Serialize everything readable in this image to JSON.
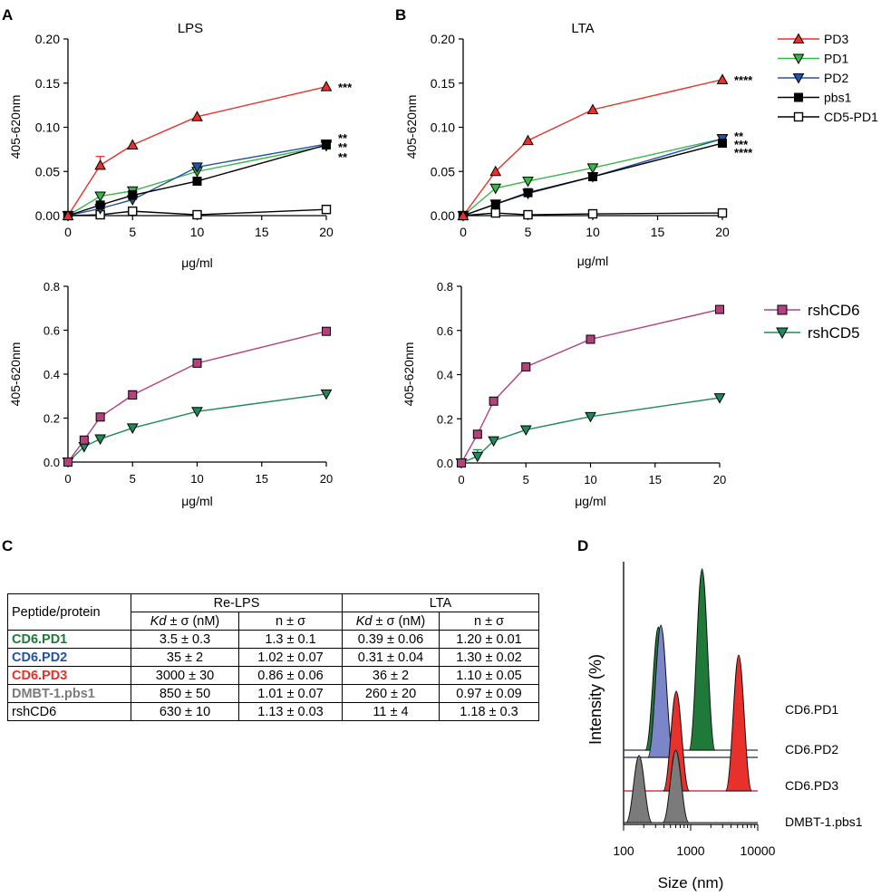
{
  "panels": {
    "A": "A",
    "B": "B",
    "C": "C",
    "D": "D"
  },
  "colors": {
    "PD3": "#e8312b",
    "PD1": "#3ab54a",
    "PD2": "#2453a6",
    "pbs1": "#000000",
    "CD5-PD1": "#000000",
    "rshCD6": "#b2417e",
    "rshCD5": "#1e8a5a",
    "CD6.PD1": "#1f7a3a",
    "CD6.PD2": "#2453a6",
    "CD6.PD3": "#e8312b",
    "DMBT-1.pbs1": "#7b7b7b",
    "rshCD6_text": "#000000",
    "dls_PD1": "#1f7a3a",
    "dls_PD2": "#7b86c8",
    "dls_PD3": "#e8312b",
    "dls_pbs1": "#7b7b7b"
  },
  "chart_data": [
    {
      "id": "A-top",
      "type": "line",
      "title": "LPS",
      "xlabel": "μg/ml",
      "ylabel": "405-620nm",
      "xlim": [
        0,
        20
      ],
      "ylim": [
        0,
        0.2
      ],
      "xticks": [
        "0",
        "5",
        "10",
        "15",
        "20"
      ],
      "yticks": [
        "0.00",
        "0.05",
        "0.10",
        "0.15",
        "0.20"
      ],
      "series": [
        {
          "name": "PD3",
          "marker": "tri-up",
          "x": [
            0,
            2.5,
            5,
            10,
            20
          ],
          "y": [
            0,
            0.057,
            0.08,
            0.112,
            0.146
          ],
          "err": [
            0,
            0.01,
            0,
            0,
            0
          ]
        },
        {
          "name": "PD1",
          "marker": "tri-down",
          "x": [
            0,
            2.5,
            5,
            10,
            20
          ],
          "y": [
            0,
            0.022,
            0.028,
            0.05,
            0.079
          ],
          "err": [
            0,
            0,
            0,
            0,
            0
          ]
        },
        {
          "name": "PD2",
          "marker": "tri-down",
          "x": [
            0,
            2.5,
            5,
            10,
            20
          ],
          "y": [
            0,
            0.008,
            0.018,
            0.055,
            0.081
          ],
          "err": [
            0,
            0,
            0,
            0,
            0
          ]
        },
        {
          "name": "pbs1",
          "marker": "square",
          "x": [
            0,
            2.5,
            5,
            10,
            20
          ],
          "y": [
            0,
            0.012,
            0.023,
            0.039,
            0.08
          ],
          "err": [
            0,
            0,
            0.005,
            0,
            0
          ]
        },
        {
          "name": "CD5-PD1",
          "marker": "square-open",
          "x": [
            0,
            2.5,
            5,
            10,
            20
          ],
          "y": [
            0,
            0.001,
            0.005,
            0.001,
            0.007
          ],
          "err": [
            0,
            0,
            0,
            0,
            0
          ]
        }
      ],
      "annotations": [
        "***",
        "**",
        "**",
        "**"
      ]
    },
    {
      "id": "B-top",
      "type": "line",
      "title": "LTA",
      "xlabel": "μg/ml",
      "ylabel": "405-620nm",
      "xlim": [
        0,
        20
      ],
      "ylim": [
        0,
        0.2
      ],
      "xticks": [
        "0",
        "5",
        "10",
        "15",
        "20"
      ],
      "yticks": [
        "0.00",
        "0.05",
        "0.10",
        "0.15",
        "0.20"
      ],
      "series": [
        {
          "name": "PD3",
          "marker": "tri-up",
          "x": [
            0,
            2.5,
            5,
            10,
            20
          ],
          "y": [
            0,
            0.05,
            0.085,
            0.12,
            0.154
          ],
          "err": [
            0,
            0,
            0,
            0,
            0
          ]
        },
        {
          "name": "PD1",
          "marker": "tri-down",
          "x": [
            0,
            2.5,
            5,
            10,
            20
          ],
          "y": [
            0,
            0.031,
            0.039,
            0.054,
            0.087
          ],
          "err": [
            0,
            0,
            0,
            0,
            0
          ]
        },
        {
          "name": "PD2",
          "marker": "tri-down",
          "x": [
            0,
            2.5,
            5,
            10,
            20
          ],
          "y": [
            0,
            0.013,
            0.025,
            0.044,
            0.087
          ],
          "err": [
            0,
            0,
            0,
            0,
            0
          ]
        },
        {
          "name": "pbs1",
          "marker": "square",
          "x": [
            0,
            2.5,
            5,
            10,
            20
          ],
          "y": [
            0,
            0.013,
            0.026,
            0.044,
            0.082
          ],
          "err": [
            0,
            0,
            0,
            0,
            0
          ]
        },
        {
          "name": "CD5-PD1",
          "marker": "square-open",
          "x": [
            0,
            2.5,
            5,
            10,
            20
          ],
          "y": [
            0,
            0.003,
            0.001,
            0.002,
            0.003
          ],
          "err": [
            0,
            0,
            0,
            0,
            0
          ]
        }
      ],
      "annotations": [
        "****",
        "**",
        "***",
        "****"
      ]
    },
    {
      "id": "A-bottom",
      "type": "line",
      "title": "",
      "xlabel": "μg/ml",
      "ylabel": "405-620nm",
      "xlim": [
        0,
        20
      ],
      "ylim": [
        0,
        0.8
      ],
      "xticks": [
        "0",
        "5",
        "10",
        "15",
        "20"
      ],
      "yticks": [
        "0.0",
        "0.2",
        "0.4",
        "0.6",
        "0.8"
      ],
      "series": [
        {
          "name": "rshCD6",
          "marker": "square",
          "x": [
            0,
            1.25,
            2.5,
            5,
            10,
            20
          ],
          "y": [
            0,
            0.1,
            0.205,
            0.305,
            0.45,
            0.595
          ],
          "err": [
            0,
            0,
            0,
            0.02,
            0.02,
            0
          ]
        },
        {
          "name": "rshCD5",
          "marker": "tri-down",
          "x": [
            0,
            1.25,
            2.5,
            5,
            10,
            20
          ],
          "y": [
            0,
            0.07,
            0.105,
            0.155,
            0.23,
            0.31
          ],
          "err": [
            0,
            0,
            0,
            0,
            0,
            0
          ]
        }
      ]
    },
    {
      "id": "B-bottom",
      "type": "line",
      "title": "",
      "xlabel": "μg/ml",
      "ylabel": "405-620nm",
      "xlim": [
        0,
        20
      ],
      "ylim": [
        0,
        0.8
      ],
      "xticks": [
        "0",
        "5",
        "10",
        "15",
        "20"
      ],
      "yticks": [
        "0.0",
        "0.2",
        "0.4",
        "0.6",
        "0.8"
      ],
      "series": [
        {
          "name": "rshCD6",
          "marker": "square",
          "x": [
            0,
            1.25,
            2.5,
            5,
            10,
            20
          ],
          "y": [
            0,
            0.13,
            0.28,
            0.435,
            0.56,
            0.695
          ],
          "err": [
            0,
            0,
            0,
            0,
            0,
            0
          ]
        },
        {
          "name": "rshCD5",
          "marker": "tri-down",
          "x": [
            0,
            1.25,
            2.5,
            5,
            10,
            20
          ],
          "y": [
            0,
            0.03,
            0.1,
            0.15,
            0.21,
            0.295
          ],
          "err": [
            0,
            0.03,
            0,
            0,
            0,
            0
          ]
        }
      ]
    },
    {
      "id": "C",
      "type": "table",
      "header_top": [
        "Peptide/protein",
        "Re-LPS",
        "LTA"
      ],
      "header_sub": [
        [
          "Kd",
          " ± σ (nM)"
        ],
        [
          "n ± σ"
        ],
        [
          "Kd",
          " ± σ (nM)"
        ],
        [
          "n ± σ"
        ]
      ],
      "rows": [
        {
          "name": "CD6.PD1",
          "cells": [
            "3.5 ± 0.3",
            "1.3 ± 0.1",
            "0.39 ± 0.06",
            "1.20 ± 0.01"
          ]
        },
        {
          "name": "CD6.PD2",
          "cells": [
            "35 ± 2",
            "1.02 ± 0.07",
            "0.31 ± 0.04",
            "1.30 ± 0.02"
          ]
        },
        {
          "name": "CD6.PD3",
          "cells": [
            "3000 ± 30",
            "0.86 ± 0.06",
            "36 ± 2",
            "1.10 ± 0.05"
          ]
        },
        {
          "name": "DMBT-1.pbs1",
          "cells": [
            "850 ± 50",
            "1.01 ± 0.07",
            "260 ± 20",
            "0.97 ± 0.09"
          ]
        },
        {
          "name": "rshCD6",
          "cells": [
            "630 ± 10",
            "1.13 ± 0.03",
            "11 ± 4",
            "1.18 ± 0.3"
          ]
        }
      ]
    },
    {
      "id": "D",
      "type": "area",
      "xlabel": "Size (nm)",
      "ylabel": "Intensity (%)",
      "xscale": "log",
      "xlim": [
        100,
        10000
      ],
      "xticks": [
        "100",
        "1000",
        "10000"
      ],
      "traces": [
        {
          "name": "CD6.PD1",
          "peaks": [
            {
              "center_nm": 330,
              "rel_height": 0.68
            },
            {
              "center_nm": 1480,
              "rel_height": 1.0
            }
          ]
        },
        {
          "name": "CD6.PD2",
          "peaks": [
            {
              "center_nm": 360,
              "rel_height": 0.73
            }
          ]
        },
        {
          "name": "CD6.PD3",
          "peaks": [
            {
              "center_nm": 610,
              "rel_height": 0.55
            },
            {
              "center_nm": 5200,
              "rel_height": 0.75
            }
          ]
        },
        {
          "name": "DMBT-1.pbs1",
          "peaks": [
            {
              "center_nm": 170,
              "rel_height": 0.37
            },
            {
              "center_nm": 600,
              "rel_height": 0.4
            }
          ]
        }
      ]
    }
  ],
  "legend_top": [
    "PD3",
    "PD1",
    "PD2",
    "pbs1",
    "CD5-PD1"
  ],
  "legend_bottom": [
    "rshCD6",
    "rshCD5"
  ]
}
